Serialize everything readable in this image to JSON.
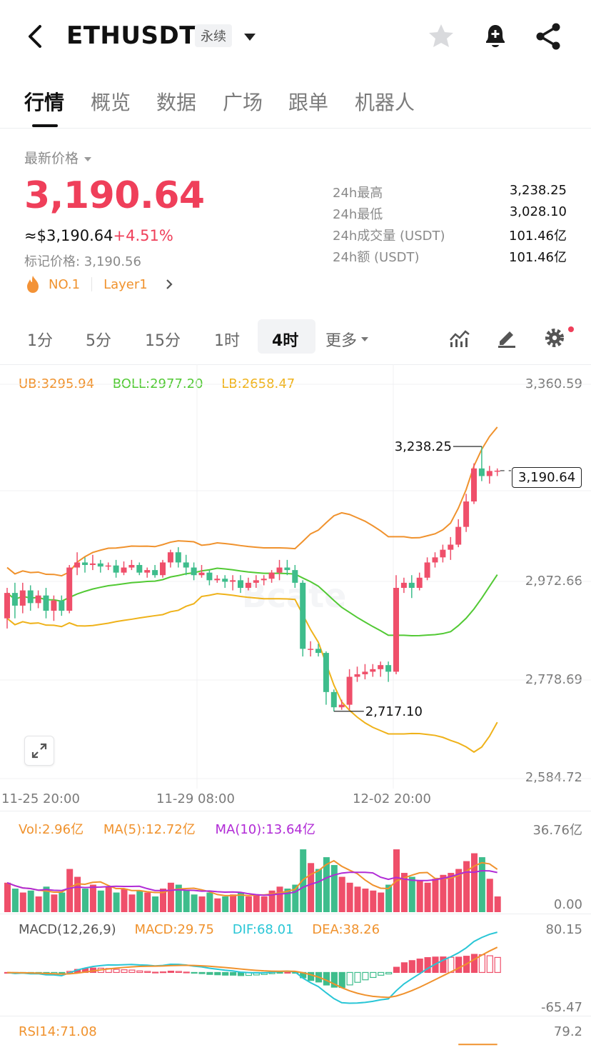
{
  "header": {
    "symbol": "ETHUSDT",
    "contract_type": "永续"
  },
  "tabs": [
    "行情",
    "概览",
    "数据",
    "广场",
    "跟单",
    "机器人"
  ],
  "price": {
    "label": "最新价格",
    "last": "3,190.64",
    "usd_equiv": "≈$3,190.64",
    "change_pct": "+4.51%",
    "mark_price": "标记价格: 3,190.56",
    "tag_rank": "NO.1",
    "tag_category": "Layer1"
  },
  "stats": [
    {
      "label": "24h最高",
      "value": "3,238.25"
    },
    {
      "label": "24h最低",
      "value": "3,028.10"
    },
    {
      "label": "24h成交量 (USDT)",
      "value": "101.46亿"
    },
    {
      "label": "24h额 (USDT)",
      "value": "101.46亿"
    }
  ],
  "intervals": [
    "1分",
    "5分",
    "15分",
    "1时",
    "4时",
    "更多"
  ],
  "active_interval": "4时",
  "colors": {
    "up": "#ef4f6a",
    "down": "#3ebd8c",
    "ub": "#f0922d",
    "boll": "#52c934",
    "lb": "#efb21a",
    "ma10": "#b12bd6",
    "dif": "#29c6d6"
  },
  "indicators": {
    "ub": "UB:3295.94",
    "boll": "BOLL:2977.20",
    "lb": "LB:2658.47",
    "vol": "Vol:2.96亿",
    "ma5": "MA(5):12.72亿",
    "ma10": "MA(10):13.64亿",
    "macd_title": "MACD(12,26,9)",
    "macd": "MACD:29.75",
    "dif": "DIF:68.01",
    "dea": "DEA:38.26",
    "rsi": "RSI14:71.08"
  },
  "axes": {
    "price": [
      "3,360.59",
      "2,972.66",
      "2,778.69",
      "2,584.72"
    ],
    "vol": [
      "36.76亿",
      "0.00"
    ],
    "macd": [
      "80.15",
      "-65.47"
    ],
    "rsi": [
      "79.2"
    ],
    "x": [
      "11-25 20:00",
      "11-29 08:00",
      "12-02 20:00"
    ]
  },
  "chart_data": {
    "type": "candlestick",
    "high_label": "3,238.25",
    "low_label": "2,717.10",
    "current_label": "3,190.64",
    "y_range": [
      2584.72,
      3360.59
    ],
    "candles": [
      [
        2900,
        2950,
        2880,
        2960
      ],
      [
        2950,
        2925,
        2900,
        2970
      ],
      [
        2925,
        2955,
        2910,
        2970
      ],
      [
        2955,
        2930,
        2915,
        2965
      ],
      [
        2930,
        2945,
        2920,
        2955
      ],
      [
        2945,
        2915,
        2900,
        2960
      ],
      [
        2915,
        2935,
        2895,
        2945
      ],
      [
        2935,
        2915,
        2905,
        2945
      ],
      [
        2915,
        3000,
        2910,
        3005
      ],
      [
        3000,
        3010,
        2985,
        3030
      ],
      [
        3010,
        3005,
        2990,
        3020
      ],
      [
        3005,
        3008,
        2995,
        3025
      ],
      [
        3008,
        3002,
        2990,
        3015
      ],
      [
        3002,
        3004,
        2995,
        3010
      ],
      [
        3004,
        2990,
        2980,
        3015
      ],
      [
        2990,
        3000,
        2985,
        3012
      ],
      [
        3000,
        3005,
        2995,
        3015
      ],
      [
        3005,
        2990,
        2985,
        3010
      ],
      [
        2990,
        2995,
        2980,
        3000
      ],
      [
        2995,
        2985,
        2980,
        3005
      ],
      [
        2985,
        3010,
        2980,
        3015
      ],
      [
        3010,
        3030,
        3000,
        3035
      ],
      [
        3030,
        3010,
        3000,
        3040
      ],
      [
        3010,
        3000,
        2985,
        3025
      ],
      [
        3000,
        2985,
        2975,
        3010
      ],
      [
        2985,
        2990,
        2980,
        3005
      ],
      [
        2990,
        2975,
        2965,
        2995
      ],
      [
        2975,
        2978,
        2970,
        2985
      ],
      [
        2978,
        2972,
        2960,
        2985
      ],
      [
        2972,
        2975,
        2955,
        2985
      ],
      [
        2975,
        2960,
        2950,
        2985
      ],
      [
        2960,
        2970,
        2955,
        2980
      ],
      [
        2970,
        2975,
        2960,
        2985
      ],
      [
        2975,
        2978,
        2965,
        2985
      ],
      [
        2978,
        2990,
        2970,
        2995
      ],
      [
        2990,
        3000,
        2975,
        3015
      ],
      [
        3000,
        2995,
        2985,
        3015
      ],
      [
        2995,
        2970,
        2960,
        3005
      ],
      [
        2970,
        2840,
        2825,
        2975
      ],
      [
        2840,
        2840,
        2825,
        2855
      ],
      [
        2840,
        2832,
        2825,
        2850
      ],
      [
        2832,
        2755,
        2730,
        2835
      ],
      [
        2755,
        2725,
        2717.1,
        2760
      ],
      [
        2725,
        2730,
        2720,
        2740
      ],
      [
        2730,
        2785,
        2720,
        2800
      ],
      [
        2785,
        2790,
        2775,
        2805
      ],
      [
        2790,
        2795,
        2780,
        2810
      ],
      [
        2795,
        2800,
        2785,
        2810
      ],
      [
        2800,
        2808,
        2785,
        2815
      ],
      [
        2808,
        2795,
        2775,
        2815
      ],
      [
        2795,
        2960,
        2790,
        2985
      ],
      [
        2960,
        2970,
        2950,
        2980
      ],
      [
        2970,
        2960,
        2940,
        2985
      ],
      [
        2960,
        2980,
        2955,
        2990
      ],
      [
        2980,
        3010,
        2975,
        3020
      ],
      [
        3010,
        3020,
        3000,
        3030
      ],
      [
        3020,
        3035,
        3010,
        3045
      ],
      [
        3035,
        3045,
        3015,
        3060
      ],
      [
        3045,
        3080,
        3040,
        3095
      ],
      [
        3080,
        3130,
        3070,
        3145
      ],
      [
        3130,
        3195,
        3125,
        3205
      ],
      [
        3195,
        3180,
        3170,
        3238.25
      ],
      [
        3180,
        3190,
        3165,
        3200
      ],
      [
        3190,
        3190.64,
        3180,
        3195
      ]
    ],
    "volume": [
      15,
      12,
      10,
      11,
      8,
      13,
      9,
      10,
      22,
      18,
      12,
      14,
      11,
      13,
      10,
      12,
      9,
      11,
      10,
      8,
      12,
      15,
      14,
      11,
      9,
      8,
      10,
      7,
      8,
      9,
      10,
      8,
      9,
      8,
      11,
      13,
      12,
      14,
      32,
      25,
      22,
      28,
      24,
      18,
      15,
      13,
      12,
      11,
      10,
      14,
      32,
      20,
      18,
      16,
      15,
      17,
      19,
      20,
      22,
      26,
      30,
      28,
      17,
      8
    ]
  }
}
